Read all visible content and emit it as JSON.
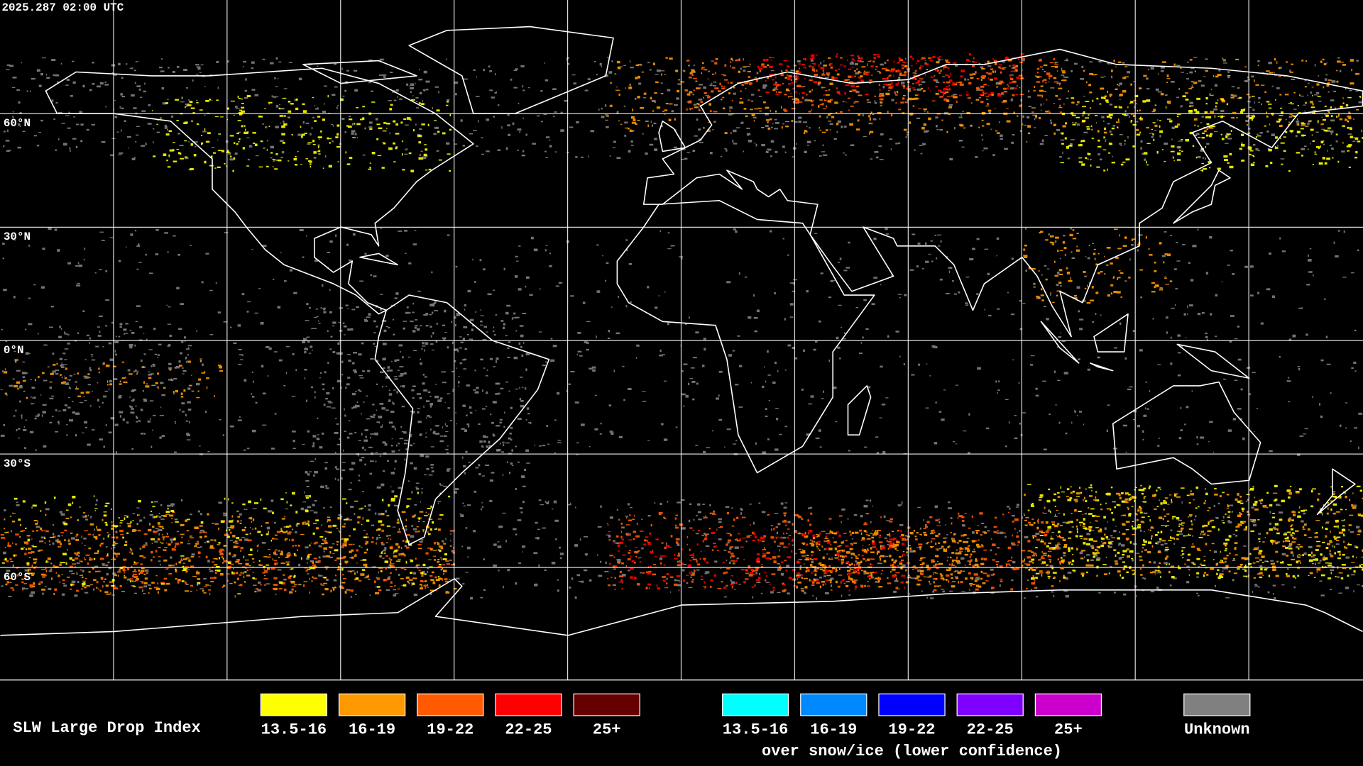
{
  "header": {
    "timestamp": "2025.287 02:00 UTC"
  },
  "map": {
    "latitude_labels": [
      "60°N",
      "30°N",
      "0°N",
      "30°S",
      "60°S"
    ]
  },
  "legend": {
    "title": "SLW Large Drop Index",
    "groups": [
      {
        "items": [
          {
            "label": "13.5-16",
            "color": "#ffff00"
          },
          {
            "label": "16-19",
            "color": "#ff9900"
          },
          {
            "label": "19-22",
            "color": "#ff5a00"
          },
          {
            "label": "22-25",
            "color": "#ff0000"
          },
          {
            "label": "25+",
            "color": "#660000"
          }
        ]
      },
      {
        "items": [
          {
            "label": "13.5-16",
            "color": "#00ffff"
          },
          {
            "label": "16-19",
            "color": "#0088ff"
          },
          {
            "label": "19-22",
            "color": "#0000ff"
          },
          {
            "label": "22-25",
            "color": "#8000ff"
          },
          {
            "label": "25+",
            "color": "#cc00cc"
          }
        ],
        "caption": "over snow/ice (lower confidence)"
      },
      {
        "items": [
          {
            "label": "Unknown",
            "color": "#808080"
          }
        ]
      }
    ]
  }
}
